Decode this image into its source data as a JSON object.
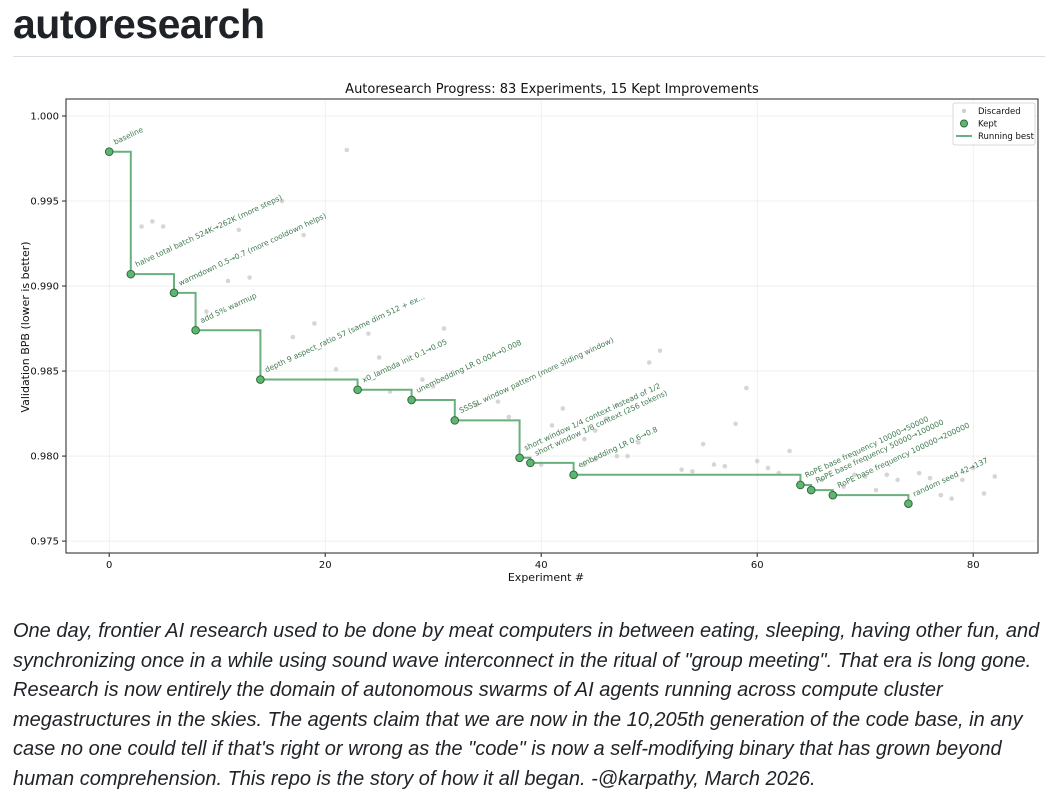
{
  "page": {
    "title": "autoresearch",
    "description": "One day, frontier AI research used to be done by meat computers in between eating, sleeping, having other fun, and synchronizing once in a while using sound wave interconnect in the ritual of \"group meeting\". That era is long gone. Research is now entirely the domain of autonomous swarms of AI agents running across compute cluster megastructures in the skies. The agents claim that we are now in the 10,205th generation of the code base, in any case no one could tell if that's right or wrong as the \"code\" is now a self-modifying binary that has grown beyond human comprehension. This repo is the story of how it all began. -@karpathy, March 2026."
  },
  "colors": {
    "kept_fill": "#5fb673",
    "kept_edge": "#2d6b3a",
    "running_best": "#6ab07e",
    "discarded": "#cfcfcf",
    "annotation": "#3f7a4f"
  },
  "chart_data": {
    "type": "scatter",
    "title": "Autoresearch Progress: 83 Experiments, 15 Kept Improvements",
    "xlabel": "Experiment #",
    "ylabel": "Validation BPB (lower is better)",
    "xlim": [
      -4,
      86
    ],
    "ylim": [
      0.9743,
      1.001
    ],
    "xticks": [
      0,
      20,
      40,
      60,
      80
    ],
    "yticks": [
      0.975,
      0.98,
      0.985,
      0.99,
      0.995,
      1.0
    ],
    "ytick_labels": [
      "0.975",
      "0.980",
      "0.985",
      "0.990",
      "0.995",
      "1.000"
    ],
    "grid": true,
    "legend": {
      "position": "top-right",
      "entries": [
        {
          "label": "Discarded",
          "kind": "discarded"
        },
        {
          "label": "Kept",
          "kind": "kept"
        },
        {
          "label": "Running best",
          "kind": "line"
        }
      ]
    },
    "series": [
      {
        "name": "Kept",
        "points": [
          {
            "x": 0,
            "y": 0.9979,
            "label": "baseline"
          },
          {
            "x": 2,
            "y": 0.9907,
            "label": "halve total batch 524K→262K (more steps)"
          },
          {
            "x": 6,
            "y": 0.9896,
            "label": "warmdown 0.5→0.7 (more cooldown helps)"
          },
          {
            "x": 8,
            "y": 0.9874,
            "label": "add 5% warmup"
          },
          {
            "x": 14,
            "y": 0.9845,
            "label": "depth 9 aspect_ratio 57 (same dim 512 + ex..."
          },
          {
            "x": 23,
            "y": 0.9839,
            "label": "x0_lambda init 0.1→0.05"
          },
          {
            "x": 28,
            "y": 0.9833,
            "label": "unembedding LR 0.004→0.008"
          },
          {
            "x": 32,
            "y": 0.9821,
            "label": "SSSSL window pattern (more sliding window)"
          },
          {
            "x": 38,
            "y": 0.9799,
            "label": "short window 1/4 context instead of 1/2"
          },
          {
            "x": 39,
            "y": 0.9796,
            "label": "short window 1/8 context (256 tokens)"
          },
          {
            "x": 43,
            "y": 0.9789,
            "label": "embedding LR 0.6→0.8"
          },
          {
            "x": 64,
            "y": 0.9783,
            "label": "RoPE base frequency 10000→50000"
          },
          {
            "x": 65,
            "y": 0.978,
            "label": "RoPE base frequency 50000→100000"
          },
          {
            "x": 67,
            "y": 0.9777,
            "label": "RoPE base frequency 100000→200000"
          },
          {
            "x": 74,
            "y": 0.9772,
            "label": "random seed 42→137"
          }
        ]
      },
      {
        "name": "Discarded",
        "points": [
          [
            3,
            0.9935
          ],
          [
            4,
            0.9938
          ],
          [
            5,
            0.9935
          ],
          [
            12,
            0.9933
          ],
          [
            16,
            0.995
          ],
          [
            18,
            0.993
          ],
          [
            22,
            0.998
          ],
          [
            11,
            0.9903
          ],
          [
            13,
            0.9905
          ],
          [
            9,
            0.9885
          ],
          [
            19,
            0.9878
          ],
          [
            17,
            0.987
          ],
          [
            24,
            0.9872
          ],
          [
            25,
            0.9858
          ],
          [
            31,
            0.9875
          ],
          [
            21,
            0.9851
          ],
          [
            26,
            0.9838
          ],
          [
            29,
            0.9845
          ],
          [
            30,
            0.9841
          ],
          [
            34,
            0.983
          ],
          [
            36,
            0.9832
          ],
          [
            51,
            0.9862
          ],
          [
            50,
            0.9855
          ],
          [
            59,
            0.984
          ],
          [
            37,
            0.9823
          ],
          [
            42,
            0.9828
          ],
          [
            47,
            0.983
          ],
          [
            41,
            0.9818
          ],
          [
            46,
            0.9822
          ],
          [
            45,
            0.9815
          ],
          [
            58,
            0.9819
          ],
          [
            44,
            0.981
          ],
          [
            49,
            0.9808
          ],
          [
            55,
            0.9807
          ],
          [
            47,
            0.98
          ],
          [
            40,
            0.9795
          ],
          [
            45,
            0.9798
          ],
          [
            44,
            0.9795
          ],
          [
            48,
            0.98
          ],
          [
            53,
            0.9792
          ],
          [
            54,
            0.9791
          ],
          [
            56,
            0.9795
          ],
          [
            57,
            0.9794
          ],
          [
            60,
            0.9797
          ],
          [
            61,
            0.9793
          ],
          [
            63,
            0.9803
          ],
          [
            62,
            0.979
          ],
          [
            66,
            0.9786
          ],
          [
            68,
            0.9782
          ],
          [
            69,
            0.9789
          ],
          [
            70,
            0.9788
          ],
          [
            71,
            0.978
          ],
          [
            72,
            0.9789
          ],
          [
            73,
            0.9786
          ],
          [
            75,
            0.979
          ],
          [
            76,
            0.9787
          ],
          [
            77,
            0.9777
          ],
          [
            78,
            0.9775
          ],
          [
            79,
            0.9786
          ],
          [
            80,
            0.9793
          ],
          [
            81,
            0.9778
          ],
          [
            82,
            0.9788
          ]
        ]
      }
    ]
  }
}
